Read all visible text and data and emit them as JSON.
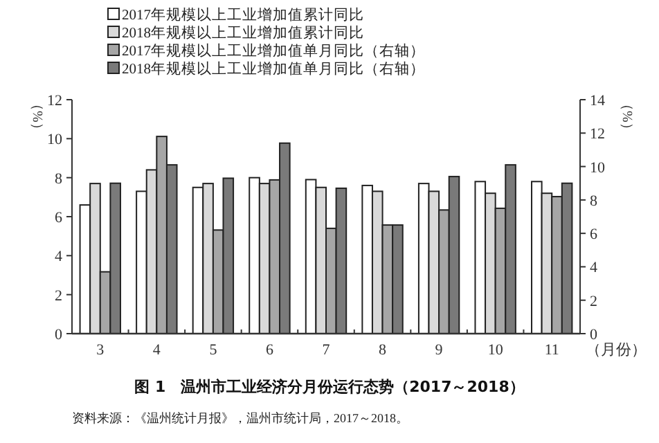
{
  "chart_data": {
    "type": "bar",
    "title": "图 1　温州市工业经济分月份运行态势（2017～2018）",
    "xlabel": "（月份）",
    "ylabel": "（%）",
    "y2label": "（%）",
    "categories": [
      "3",
      "4",
      "5",
      "6",
      "7",
      "8",
      "9",
      "10",
      "11"
    ],
    "series": [
      {
        "name": "2017年规模以上工业增加值累计同比",
        "color": "#ffffff",
        "values": [
          6.6,
          7.3,
          7.5,
          8.0,
          7.9,
          7.6,
          7.7,
          7.8,
          7.8
        ]
      },
      {
        "name": "2018年规模以上工业增加值累计同比",
        "color": "#d9d9d9",
        "values": [
          7.7,
          8.4,
          7.7,
          7.7,
          7.5,
          7.3,
          7.3,
          7.2,
          7.2
        ]
      },
      {
        "name": "2017年规模以上工业增加值单月同比（右轴）",
        "color": "#a6a6a6",
        "axis": "y2",
        "values": [
          3.7,
          11.8,
          6.2,
          9.2,
          6.3,
          6.5,
          7.4,
          7.5,
          8.2
        ]
      },
      {
        "name": "2018年规模以上工业增加值单月同比（右轴）",
        "color": "#7a7a7a",
        "axis": "y2",
        "values": [
          9.0,
          10.1,
          9.3,
          11.4,
          8.7,
          6.5,
          9.4,
          10.1,
          9.0
        ]
      }
    ],
    "ylim": [
      0,
      12
    ],
    "yticks": [
      0,
      2,
      4,
      6,
      8,
      10,
      12
    ],
    "y2lim": [
      0,
      14
    ],
    "y2ticks": [
      0,
      2,
      4,
      6,
      8,
      10,
      12,
      14
    ],
    "legend": "top",
    "grid": false,
    "annotations": [
      "资料来源：《温州统计月报》，温州市统计局，2017～2018。"
    ]
  }
}
